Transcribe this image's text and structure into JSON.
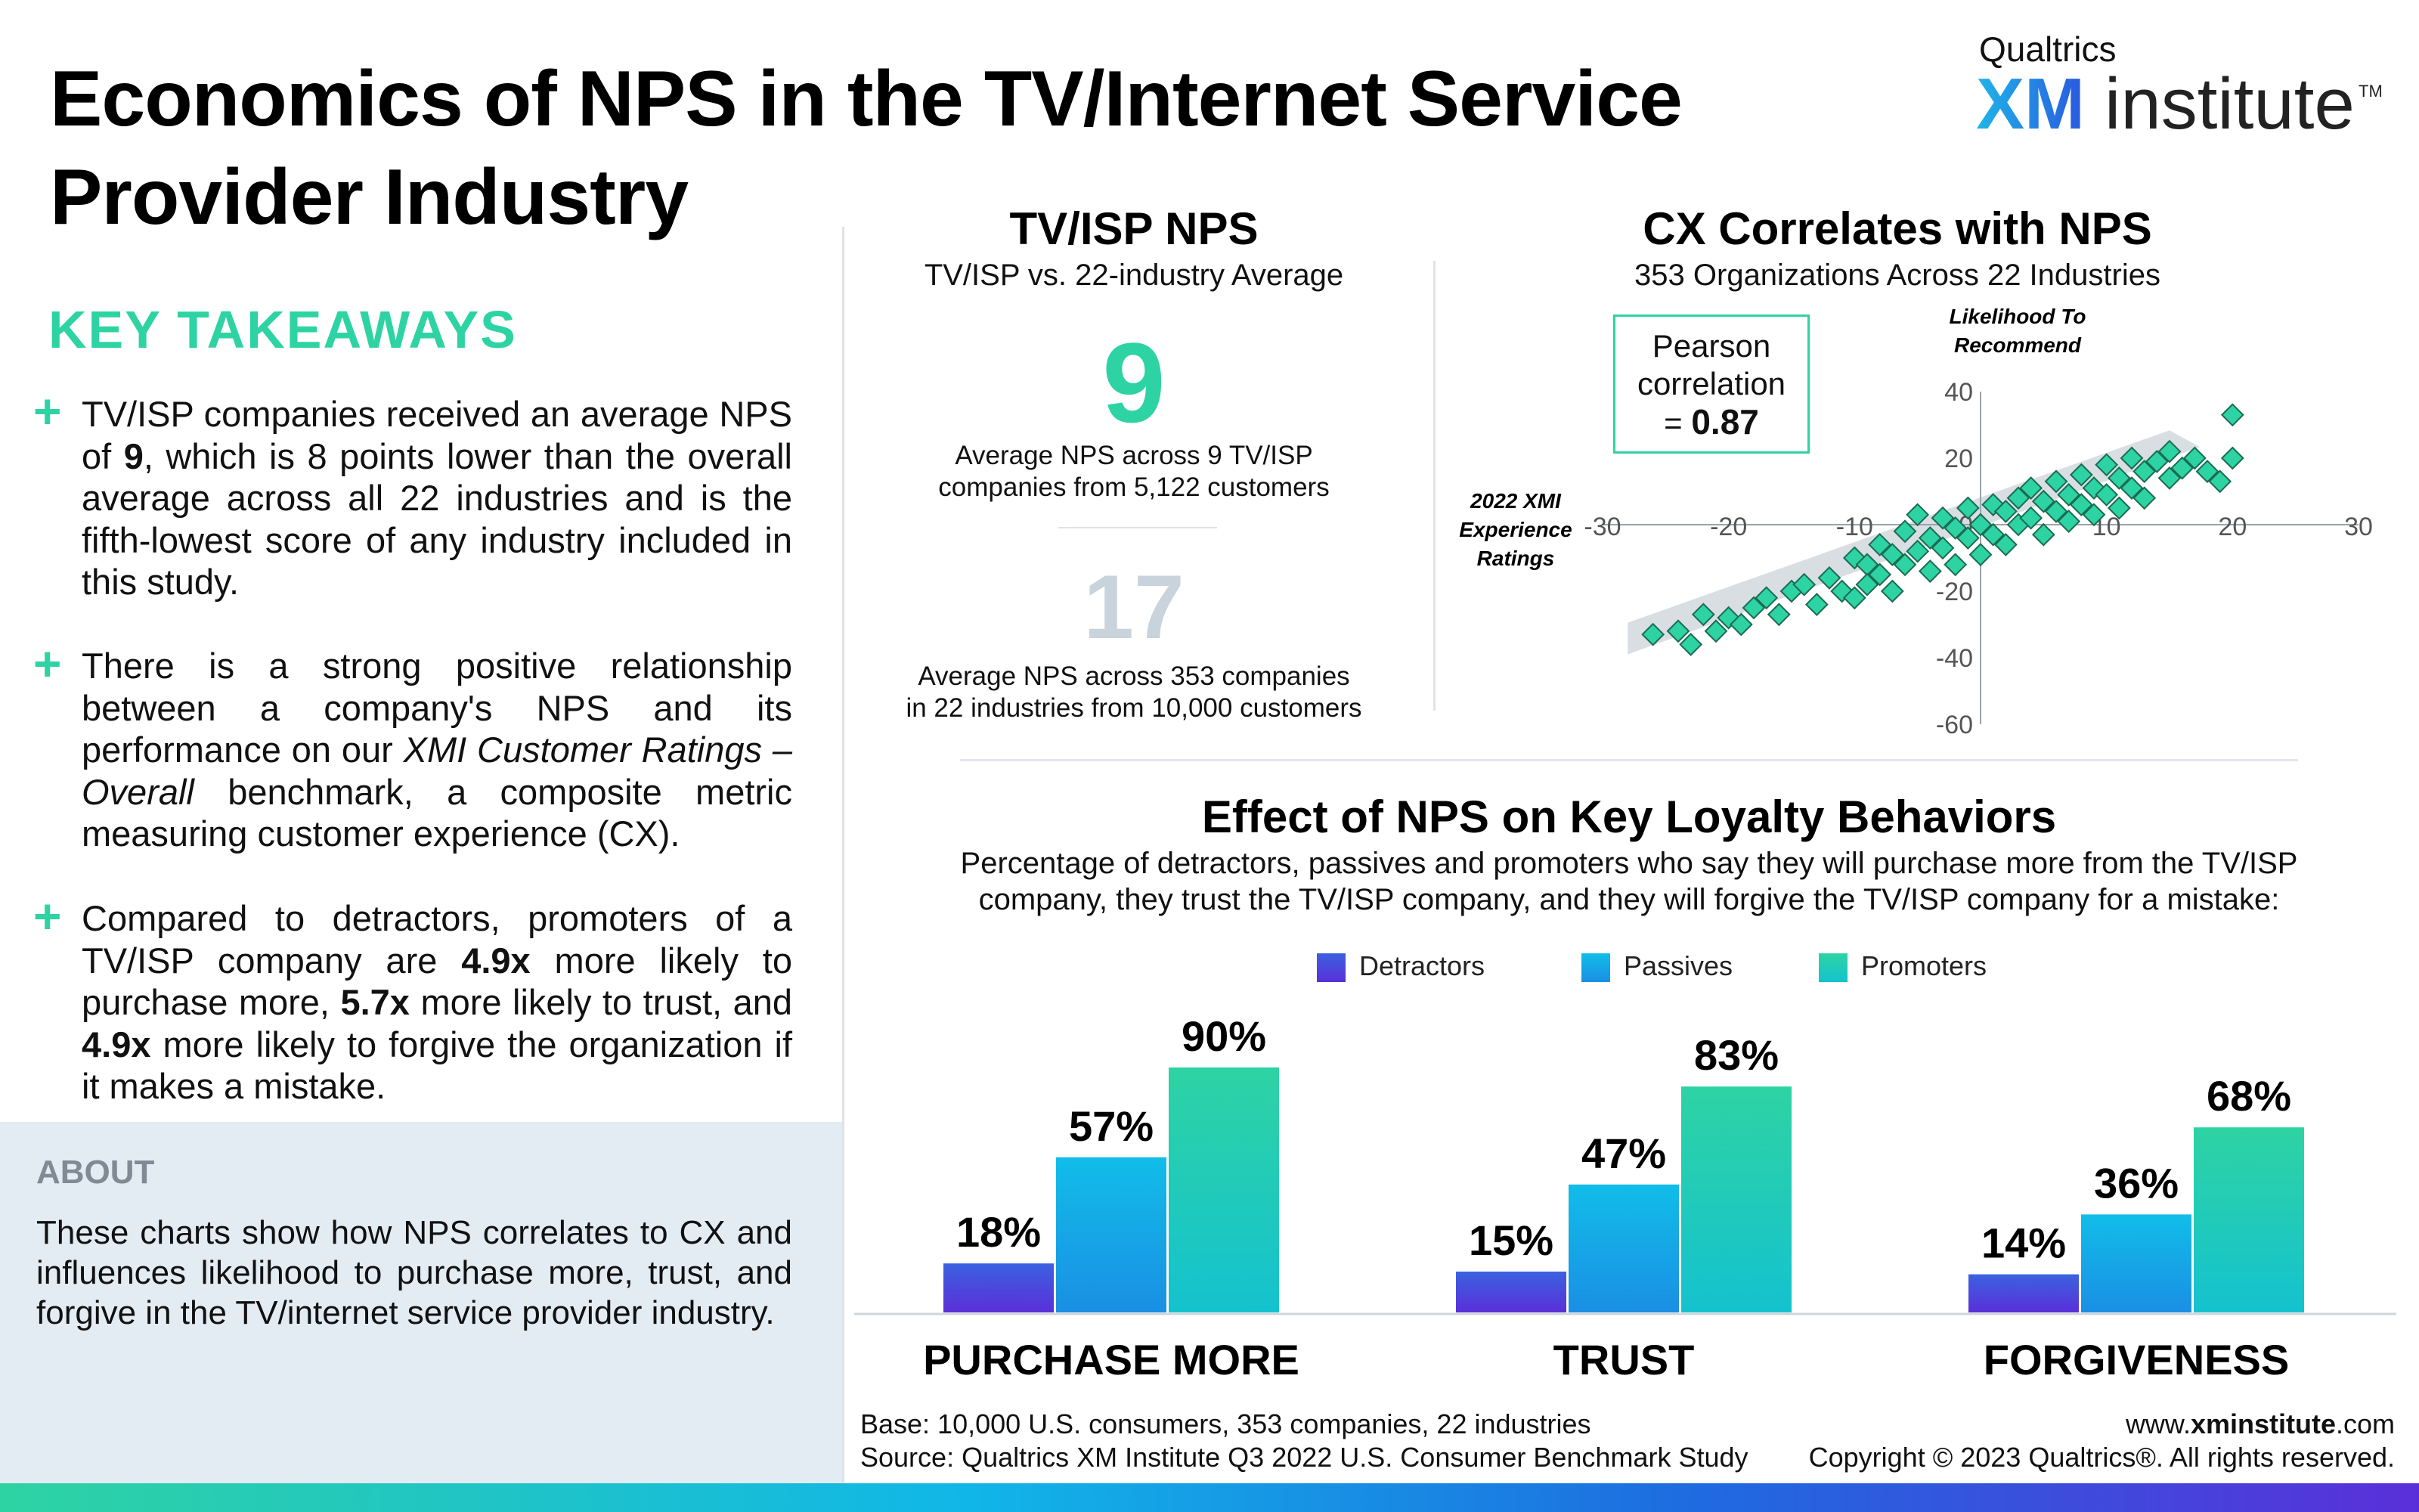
{
  "header": {
    "title": "Economics of NPS in the TV/Internet Service Provider Industry",
    "brand_top": "Qualtrics",
    "brand_xm": "XM",
    "brand_institute": "institute",
    "brand_tm": "TM"
  },
  "takeaways": {
    "title": "KEY TAKEAWAYS",
    "items": [
      {
        "plus": "+",
        "text": "TV/ISP companies received an average NPS of 9, which is 8 points lower than the overall average across all 22 industries and is the fifth-lowest score of any industry included in this study."
      },
      {
        "plus": "+",
        "text": "There is a strong positive relationship between a company's NPS and its performance on our XMI Customer Ratings – Overall benchmark, a composite metric measuring customer experience (CX)."
      },
      {
        "plus": "+",
        "text": "Compared to detractors, promoters of a TV/ISP company are 4.9x more likely to purchase more, 5.7x more likely to trust, and 4.9x more likely to forgive the organization if it makes a mistake."
      }
    ]
  },
  "about": {
    "title": "ABOUT",
    "text": "These charts show how NPS correlates to CX and influences likelihood to purchase more, trust, and forgive in the TV/internet service provider industry."
  },
  "nps_panel": {
    "title": "TV/ISP NPS",
    "subtitle": "TV/ISP vs. 22-industry Average",
    "value": "9",
    "value_caption_1": "Average NPS across 9 TV/ISP",
    "value_caption_2": "companies from 5,122 customers",
    "avg_value": "17",
    "avg_caption_1": "Average NPS across 353 companies",
    "avg_caption_2": "in 22 industries from 10,000 customers"
  },
  "colors": {
    "accent": "#2ed3a3",
    "detractors": "#4a3ad6",
    "passives": "#12a9e6",
    "promoters": "#22d3a8",
    "avg_gray": "#c9d3dc"
  },
  "chart_data": [
    {
      "type": "scatter",
      "title": "CX Correlates with NPS",
      "subtitle": "353 Organizations Across 22 Industries",
      "pearson_label_1": "Pearson",
      "pearson_label_2": "correlation",
      "pearson_label_3": "= ",
      "pearson_value": "0.87",
      "xlabel_lines": [
        "2022 XMI",
        "Experience",
        "Ratings"
      ],
      "ylabel_lines": [
        "Likelihood To",
        "Recommend"
      ],
      "xlim": [
        -30,
        30
      ],
      "ylim": [
        -60,
        40
      ],
      "x_ticks": [
        -30,
        -20,
        -10,
        10,
        20,
        30
      ],
      "y_ticks": [
        40,
        20,
        0,
        -20,
        -40,
        -60
      ],
      "points": [
        [
          -26,
          -33
        ],
        [
          -24,
          -32
        ],
        [
          -23,
          -36
        ],
        [
          -22,
          -27
        ],
        [
          -21,
          -32
        ],
        [
          -20,
          -28
        ],
        [
          -19,
          -30
        ],
        [
          -18,
          -25
        ],
        [
          -17,
          -22
        ],
        [
          -16,
          -27
        ],
        [
          -15,
          -20
        ],
        [
          -14,
          -18
        ],
        [
          -13,
          -24
        ],
        [
          -12,
          -16
        ],
        [
          -11,
          -20
        ],
        [
          -10,
          -10
        ],
        [
          -10,
          -22
        ],
        [
          -9,
          -12
        ],
        [
          -9,
          -18
        ],
        [
          -8,
          -6
        ],
        [
          -8,
          -15
        ],
        [
          -7,
          -9
        ],
        [
          -7,
          -20
        ],
        [
          -6,
          -2
        ],
        [
          -6,
          -12
        ],
        [
          -5,
          3
        ],
        [
          -5,
          -8
        ],
        [
          -4,
          -4
        ],
        [
          -4,
          -14
        ],
        [
          -3,
          2
        ],
        [
          -3,
          -7
        ],
        [
          -2,
          -1
        ],
        [
          -2,
          -12
        ],
        [
          -1,
          5
        ],
        [
          -1,
          -4
        ],
        [
          0,
          0
        ],
        [
          0,
          -9
        ],
        [
          1,
          6
        ],
        [
          1,
          -3
        ],
        [
          2,
          4
        ],
        [
          2,
          -6
        ],
        [
          3,
          8
        ],
        [
          3,
          0
        ],
        [
          4,
          11
        ],
        [
          4,
          2
        ],
        [
          5,
          7
        ],
        [
          5,
          -3
        ],
        [
          6,
          13
        ],
        [
          6,
          4
        ],
        [
          7,
          9
        ],
        [
          7,
          1
        ],
        [
          8,
          15
        ],
        [
          8,
          6
        ],
        [
          9,
          11
        ],
        [
          9,
          3
        ],
        [
          10,
          18
        ],
        [
          10,
          9
        ],
        [
          11,
          14
        ],
        [
          11,
          5
        ],
        [
          12,
          20
        ],
        [
          12,
          11
        ],
        [
          13,
          16
        ],
        [
          13,
          8
        ],
        [
          14,
          19
        ],
        [
          15,
          14
        ],
        [
          15,
          22
        ],
        [
          16,
          17
        ],
        [
          17,
          20
        ],
        [
          18,
          16
        ],
        [
          20,
          20
        ],
        [
          20,
          33
        ],
        [
          19,
          13
        ]
      ]
    },
    {
      "type": "bar",
      "title": "Effect of NPS on Key Loyalty Behaviors",
      "subtitle_1": "Percentage of detractors, passives and promoters who say they will purchase more from the TV/ISP",
      "subtitle_2": "company, they trust the TV/ISP company, and they will forgive the TV/ISP company for a mistake:",
      "categories": [
        "PURCHASE MORE",
        "TRUST",
        "FORGIVENESS"
      ],
      "series": [
        {
          "name": "Detractors",
          "values": [
            18,
            15,
            14
          ],
          "labels": [
            "18%",
            "15%",
            "14%"
          ]
        },
        {
          "name": "Passives",
          "values": [
            57,
            47,
            36
          ],
          "labels": [
            "57%",
            "47%",
            "36%"
          ]
        },
        {
          "name": "Promoters",
          "values": [
            90,
            83,
            68
          ],
          "labels": [
            "90%",
            "83%",
            "68%"
          ]
        }
      ],
      "ylim": [
        0,
        100
      ]
    }
  ],
  "footer": {
    "base": "Base: 10,000 U.S. consumers, 353 companies, 22 industries",
    "source": "Source: Qualtrics XM Institute Q3 2022 U.S. Consumer Benchmark Study",
    "website_prefix": "www.",
    "website_bold": "xminstitute",
    "website_suffix": ".com",
    "copyright": "Copyright © 2023 Qualtrics®. All rights reserved."
  }
}
